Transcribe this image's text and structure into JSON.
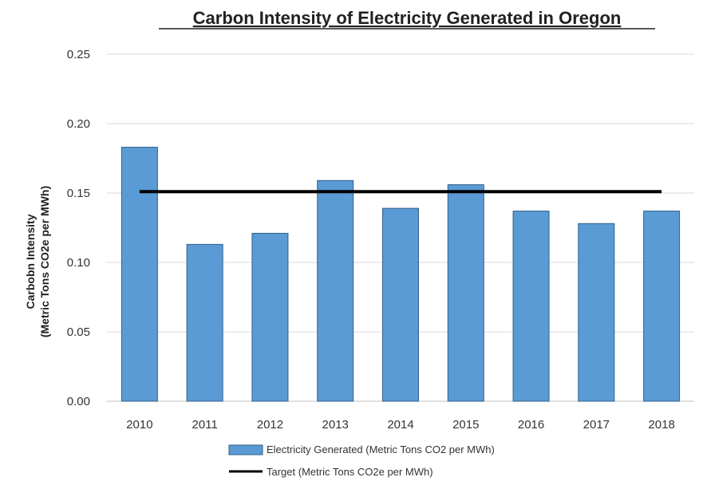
{
  "chart_data": {
    "type": "bar",
    "title": "Carbon Intensity of Electricity Generated in Oregon",
    "ylabel": [
      "Carbobn Intensity",
      "(Metric Tons CO2e per MWh)"
    ],
    "xlabel": "",
    "categories": [
      "2010",
      "2011",
      "2012",
      "2013",
      "2014",
      "2015",
      "2016",
      "2017",
      "2018"
    ],
    "ylim": [
      0,
      0.25
    ],
    "yticks": [
      "0.00",
      "0.05",
      "0.10",
      "0.15",
      "0.20",
      "0.25"
    ],
    "grid": true,
    "legend_position": "bottom",
    "series": [
      {
        "name": "Electricity Generated (Metric Tons CO2 per MWh)",
        "type": "bar",
        "color": "#5b9bd5",
        "values": [
          0.183,
          0.113,
          0.121,
          0.159,
          0.139,
          0.156,
          0.137,
          0.128,
          0.137
        ]
      },
      {
        "name": "Target (Metric Tons CO2e per MWh)",
        "type": "line",
        "color": "#000000",
        "value": 0.151
      }
    ]
  }
}
